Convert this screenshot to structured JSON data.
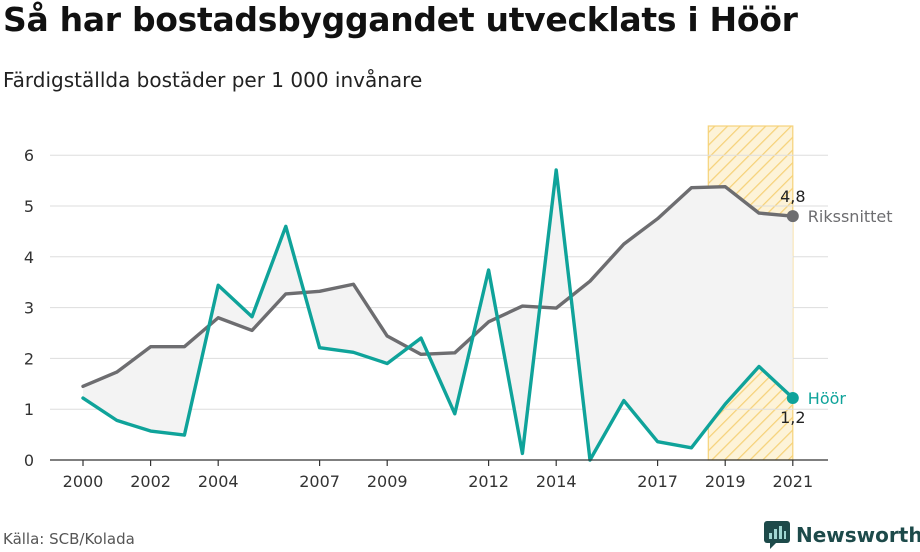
{
  "title": "Så har bostadsbyggandet utvecklats i Höör",
  "subtitle": "Färdigställda bostäder per 1 000 invånare",
  "source": "Källa: SCB/Kolada",
  "brand": {
    "name": "Newsworthy",
    "icon": "newsworthy-logo-icon"
  },
  "colors": {
    "hoor": "#0fa39a",
    "riket": "#6d6d70",
    "fill": "#f3f3f3",
    "highlight_stroke": "#f6d27a",
    "highlight_fill": "#fdf3d8",
    "grid": "#dddddd"
  },
  "chart_data": {
    "type": "line",
    "x": [
      2000,
      2001,
      2002,
      2003,
      2004,
      2005,
      2006,
      2007,
      2008,
      2009,
      2010,
      2011,
      2012,
      2013,
      2014,
      2015,
      2016,
      2017,
      2018,
      2019,
      2020,
      2021
    ],
    "x_ticks": [
      "2000",
      "2002",
      "2004",
      "2007",
      "2009",
      "2012",
      "2014",
      "2017",
      "2019",
      "2021"
    ],
    "y_ticks": [
      "0",
      "1",
      "2",
      "3",
      "4",
      "5",
      "6"
    ],
    "ylim": [
      0,
      6
    ],
    "grid": true,
    "highlight_range": [
      2018.5,
      2021
    ],
    "series": [
      {
        "name": "Rikssnittet",
        "key": "riket",
        "values": [
          1.45,
          1.73,
          2.23,
          2.23,
          2.8,
          2.55,
          3.27,
          3.32,
          3.46,
          2.44,
          2.08,
          2.11,
          2.72,
          3.03,
          2.99,
          3.52,
          4.25,
          4.75,
          5.36,
          5.38,
          4.86,
          4.8
        ],
        "end_label": "4,8"
      },
      {
        "name": "Höör",
        "key": "hoor",
        "values": [
          1.22,
          0.78,
          0.57,
          0.49,
          3.44,
          2.82,
          4.6,
          2.21,
          2.12,
          1.9,
          2.4,
          0.91,
          3.74,
          0.13,
          5.71,
          0.0,
          1.17,
          0.36,
          0.24,
          1.1,
          1.84,
          1.22
        ],
        "end_label": "1,2"
      }
    ]
  }
}
